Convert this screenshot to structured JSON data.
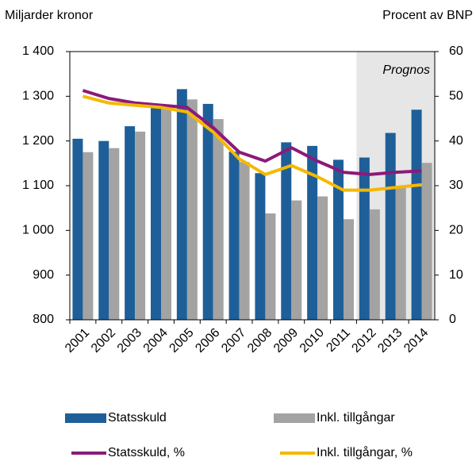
{
  "chart_data": {
    "type": "bar_line",
    "ylabel": "Miljarder kronor",
    "y2label": "Procent av BNP",
    "categories": [
      "2001",
      "2002",
      "2003",
      "2004",
      "2005",
      "2006",
      "2007",
      "2008",
      "2009",
      "2010",
      "2011",
      "2012",
      "2013",
      "2014"
    ],
    "series": [
      {
        "name": "Statsskuld",
        "type": "bar",
        "color": "#1f5f99",
        "values": [
          1205,
          1200,
          1233,
          1278,
          1316,
          1283,
          1176,
          1128,
          1197,
          1189,
          1158,
          1163,
          1218,
          1270
        ]
      },
      {
        "name": "Inkl. tillgångar",
        "type": "bar",
        "color": "#a3a3a3",
        "values": [
          1175,
          1184,
          1221,
          1272,
          1293,
          1249,
          1153,
          1038,
          1067,
          1076,
          1025,
          1047,
          1100,
          1151
        ]
      },
      {
        "name": "Statsskuld, %",
        "type": "line",
        "axis": "y2",
        "color": "#8b1a7a",
        "values": [
          51.3,
          49.5,
          48.5,
          48,
          47.5,
          43,
          37.5,
          35.5,
          38.5,
          35.5,
          33,
          32.5,
          33,
          33.3
        ]
      },
      {
        "name": "Inkl. tillgångar, %",
        "type": "line",
        "axis": "y2",
        "color": "#f5b800",
        "values": [
          50,
          48.5,
          48,
          47.5,
          46.5,
          42,
          36,
          32.5,
          34.5,
          32,
          29,
          29,
          29.6,
          30.2
        ]
      }
    ],
    "ylim": [
      800,
      1400
    ],
    "yticks": [
      800,
      900,
      {
        "value": 1000,
        "label": "1 000"
      },
      {
        "value": 1100,
        "label": "1 100"
      },
      {
        "value": 1200,
        "label": "1 200"
      },
      {
        "value": 1300,
        "label": "1 300"
      },
      {
        "value": 1400,
        "label": "1 400"
      }
    ],
    "y2lim": [
      0,
      60
    ],
    "y2ticks": [
      0,
      10,
      20,
      30,
      40,
      50,
      60
    ],
    "annotation": {
      "text": "Prognos",
      "from": "2012",
      "color": "#e6e6e6"
    },
    "grid": false
  }
}
